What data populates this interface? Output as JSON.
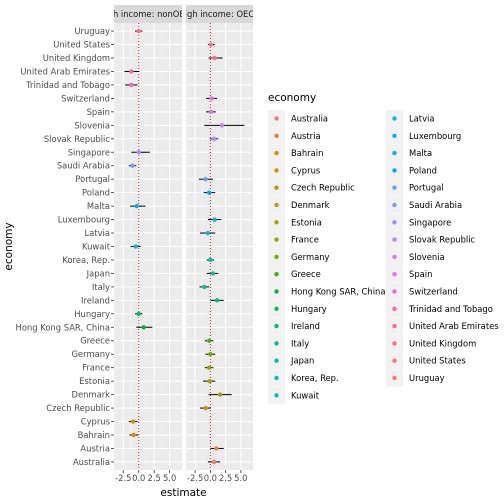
{
  "chart_data": {
    "type": "scatter",
    "xlabel": "estimate",
    "ylabel": "economy",
    "xlim": [
      -4,
      7
    ],
    "x_ticks": [
      -2.5,
      0.0,
      2.5,
      5.0
    ],
    "x_tick_labels": [
      "-2.5",
      "0.0",
      "2.5",
      "5.0"
    ],
    "reference_line_x": 0,
    "grid": true,
    "legend_title": "economy",
    "legend_position": "right",
    "facets": [
      {
        "label": "High income: nonOECD",
        "points": [
          {
            "economy": "Uruguay",
            "estimate": 0.0,
            "lo": -0.6,
            "hi": 0.6
          },
          {
            "economy": "United Arab Emirates",
            "estimate": -1.2,
            "lo": -2.3,
            "hi": 0.1
          },
          {
            "economy": "Trinidad and Tobago",
            "estimate": -1.2,
            "lo": -2.2,
            "hi": -0.2
          },
          {
            "economy": "Singapore",
            "estimate": 0.0,
            "lo": -1.2,
            "hi": 1.8
          },
          {
            "economy": "Saudi Arabia",
            "estimate": -1.0,
            "lo": -1.6,
            "hi": -0.4
          },
          {
            "economy": "Malta",
            "estimate": -0.3,
            "lo": -1.4,
            "hi": 1.1
          },
          {
            "economy": "Kuwait",
            "estimate": -0.5,
            "lo": -1.3,
            "hi": 0.3
          },
          {
            "economy": "Hungary",
            "estimate": 0.0,
            "lo": -0.6,
            "hi": 0.6
          },
          {
            "economy": "Hong Kong SAR, China",
            "estimate": 0.8,
            "lo": -0.4,
            "hi": 2.2
          },
          {
            "economy": "Cyprus",
            "estimate": -0.9,
            "lo": -1.6,
            "hi": -0.2
          },
          {
            "economy": "Bahrain",
            "estimate": -0.8,
            "lo": -1.5,
            "hi": -0.1
          }
        ]
      },
      {
        "label": "High income: OECD",
        "points": [
          {
            "economy": "United States",
            "estimate": 0.1,
            "lo": -0.4,
            "hi": 0.7
          },
          {
            "economy": "United Kingdom",
            "estimate": 0.7,
            "lo": -0.3,
            "hi": 2.0
          },
          {
            "economy": "Switzerland",
            "estimate": 0.2,
            "lo": -0.7,
            "hi": 1.1
          },
          {
            "economy": "Spain",
            "estimate": 0.1,
            "lo": -0.7,
            "hi": 0.9
          },
          {
            "economy": "Slovenia",
            "estimate": 1.9,
            "lo": -1.0,
            "hi": 5.6
          },
          {
            "economy": "Slovak Republic",
            "estimate": 0.6,
            "lo": -0.1,
            "hi": 1.3
          },
          {
            "economy": "Portugal",
            "estimate": -0.8,
            "lo": -1.9,
            "hi": 0.4
          },
          {
            "economy": "Poland",
            "estimate": -0.2,
            "lo": -1.1,
            "hi": 0.8
          },
          {
            "economy": "Luxembourg",
            "estimate": 0.7,
            "lo": -0.4,
            "hi": 1.8
          },
          {
            "economy": "Latvia",
            "estimate": -0.4,
            "lo": -1.7,
            "hi": 0.8
          },
          {
            "economy": "Korea, Rep.",
            "estimate": 0.0,
            "lo": -0.6,
            "hi": 0.6
          },
          {
            "economy": "Japan",
            "estimate": 0.4,
            "lo": -0.6,
            "hi": 1.3
          },
          {
            "economy": "Italy",
            "estimate": -1.0,
            "lo": -1.8,
            "hi": -0.2
          },
          {
            "economy": "Ireland",
            "estimate": 1.1,
            "lo": 0.0,
            "hi": 2.2
          },
          {
            "economy": "Greece",
            "estimate": -0.2,
            "lo": -0.9,
            "hi": 0.5
          },
          {
            "economy": "Germany",
            "estimate": 0.0,
            "lo": -0.8,
            "hi": 0.8
          },
          {
            "economy": "France",
            "estimate": -0.2,
            "lo": -0.9,
            "hi": 0.5
          },
          {
            "economy": "Estonia",
            "estimate": -0.1,
            "lo": -1.2,
            "hi": 0.8
          },
          {
            "economy": "Denmark",
            "estimate": 1.6,
            "lo": -0.3,
            "hi": 3.5
          },
          {
            "economy": "Czech Republic",
            "estimate": -0.8,
            "lo": -1.7,
            "hi": 0.1
          },
          {
            "economy": "Austria",
            "estimate": 1.0,
            "lo": 0.0,
            "hi": 2.2
          },
          {
            "economy": "Australia",
            "estimate": 0.6,
            "lo": -0.4,
            "hi": 1.6
          }
        ]
      }
    ],
    "economies": [
      {
        "name": "Australia",
        "color": "#F8766D"
      },
      {
        "name": "Austria",
        "color": "#F07D45"
      },
      {
        "name": "Bahrain",
        "color": "#E38900"
      },
      {
        "name": "Cyprus",
        "color": "#D39200"
      },
      {
        "name": "Czech Republic",
        "color": "#C09B00"
      },
      {
        "name": "Denmark",
        "color": "#AFA100"
      },
      {
        "name": "Estonia",
        "color": "#A3A500"
      },
      {
        "name": "France",
        "color": "#8CAB00"
      },
      {
        "name": "Germany",
        "color": "#6BB100"
      },
      {
        "name": "Greece",
        "color": "#3DB500"
      },
      {
        "name": "Hong Kong SAR, China",
        "color": "#00BA38"
      },
      {
        "name": "Hungary",
        "color": "#00BD5C"
      },
      {
        "name": "Ireland",
        "color": "#00BF76"
      },
      {
        "name": "Italy",
        "color": "#00C08D"
      },
      {
        "name": "Japan",
        "color": "#00C1A3"
      },
      {
        "name": "Korea, Rep.",
        "color": "#00C0B5"
      },
      {
        "name": "Kuwait",
        "color": "#00BFC4"
      },
      {
        "name": "Latvia",
        "color": "#00BCD8"
      },
      {
        "name": "Luxembourg",
        "color": "#00B8E5"
      },
      {
        "name": "Malta",
        "color": "#00B0F6"
      },
      {
        "name": "Poland",
        "color": "#00A5FF"
      },
      {
        "name": "Portugal",
        "color": "#619CFF"
      },
      {
        "name": "Saudi Arabia",
        "color": "#7F96FF"
      },
      {
        "name": "Singapore",
        "color": "#9C8DFF"
      },
      {
        "name": "Slovak Republic",
        "color": "#B983FF"
      },
      {
        "name": "Slovenia",
        "color": "#D279FF"
      },
      {
        "name": "Spain",
        "color": "#E76BF3"
      },
      {
        "name": "Switzerland",
        "color": "#F564E3"
      },
      {
        "name": "Trinidad and Tobago",
        "color": "#FF62BC"
      },
      {
        "name": "United Arab Emirates",
        "color": "#FF6699"
      },
      {
        "name": "United Kingdom",
        "color": "#FC6D8F"
      },
      {
        "name": "United States",
        "color": "#FA717F"
      },
      {
        "name": "Uruguay",
        "color": "#F8766D"
      }
    ],
    "y_order_top_to_bottom": [
      "Uruguay",
      "United States",
      "United Kingdom",
      "United Arab Emirates",
      "Trinidad and Tobago",
      "Switzerland",
      "Spain",
      "Slovenia",
      "Slovak Republic",
      "Singapore",
      "Saudi Arabia",
      "Portugal",
      "Poland",
      "Malta",
      "Luxembourg",
      "Latvia",
      "Kuwait",
      "Korea, Rep.",
      "Japan",
      "Italy",
      "Ireland",
      "Hungary",
      "Hong Kong SAR, China",
      "Greece",
      "Germany",
      "France",
      "Estonia",
      "Denmark",
      "Czech Republic",
      "Cyprus",
      "Bahrain",
      "Austria",
      "Australia"
    ]
  }
}
